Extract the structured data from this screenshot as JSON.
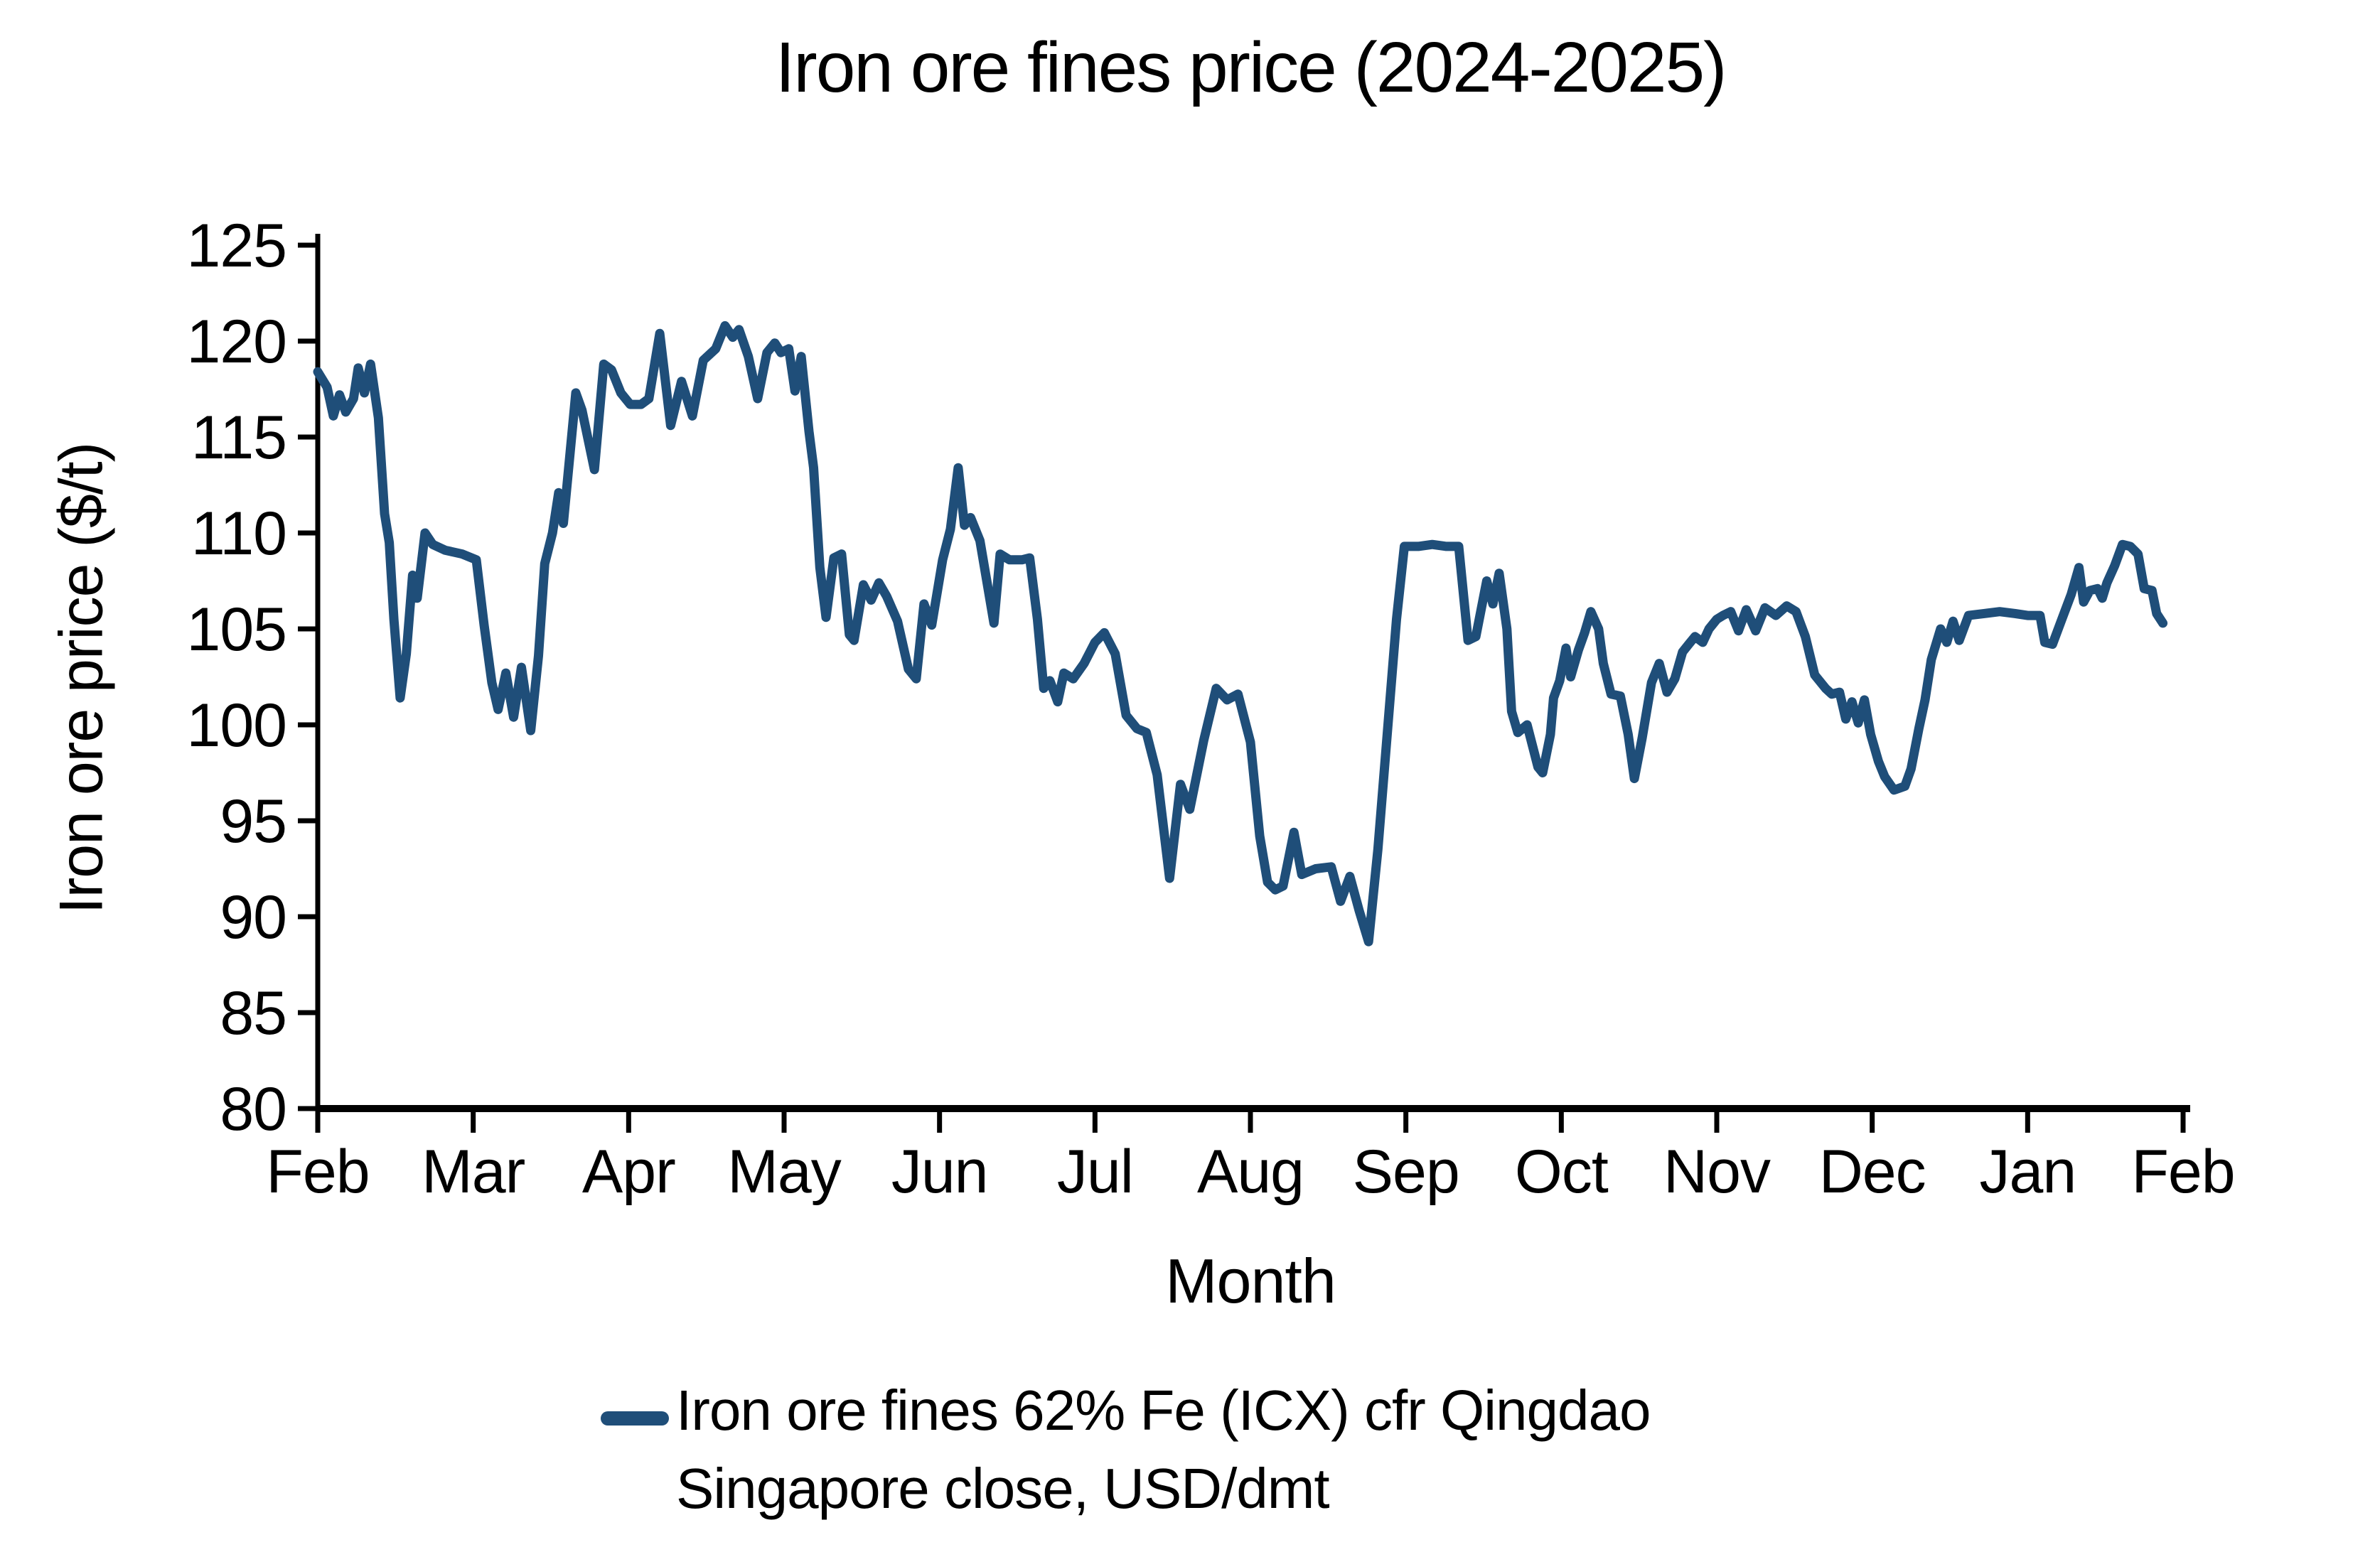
{
  "chart_data": {
    "type": "line",
    "title": "Iron ore fines price (2024-2025)",
    "xlabel": "Month",
    "ylabel": "Iron ore price ($/t)",
    "ylim": [
      80,
      125
    ],
    "y_ticks": [
      125,
      120,
      115,
      110,
      105,
      100,
      95,
      90,
      85,
      80
    ],
    "x_ticks": [
      "Feb",
      "Mar",
      "Apr",
      "May",
      "Jun",
      "Jul",
      "Aug",
      "Sep",
      "Oct",
      "Nov",
      "Dec",
      "Jan",
      "Feb"
    ],
    "grid": false,
    "legend_position": "bottom",
    "axis_color": "#000000",
    "series": [
      {
        "name_line1": "Iron ore fines 62% Fe (ICX) cfr Qingdao",
        "name_line2": "Singapore close, USD/dmt",
        "color": "#1f4e79",
        "points": [
          [
            0.0,
            118.4
          ],
          [
            0.06,
            117.6
          ],
          [
            0.1,
            116.1
          ],
          [
            0.14,
            117.2
          ],
          [
            0.18,
            116.3
          ],
          [
            0.23,
            117.0
          ],
          [
            0.26,
            118.6
          ],
          [
            0.3,
            117.3
          ],
          [
            0.34,
            118.8
          ],
          [
            0.39,
            116.0
          ],
          [
            0.43,
            111.0
          ],
          [
            0.46,
            109.5
          ],
          [
            0.49,
            105.5
          ],
          [
            0.53,
            101.4
          ],
          [
            0.57,
            103.7
          ],
          [
            0.61,
            107.8
          ],
          [
            0.64,
            106.6
          ],
          [
            0.69,
            110.0
          ],
          [
            0.74,
            109.4
          ],
          [
            0.82,
            109.1
          ],
          [
            0.93,
            108.9
          ],
          [
            1.02,
            108.6
          ],
          [
            1.07,
            105.2
          ],
          [
            1.12,
            102.2
          ],
          [
            1.16,
            100.8
          ],
          [
            1.21,
            102.7
          ],
          [
            1.26,
            100.4
          ],
          [
            1.31,
            103.0
          ],
          [
            1.37,
            99.7
          ],
          [
            1.42,
            103.6
          ],
          [
            1.46,
            108.4
          ],
          [
            1.51,
            110.0
          ],
          [
            1.55,
            112.1
          ],
          [
            1.58,
            110.5
          ],
          [
            1.66,
            117.3
          ],
          [
            1.7,
            116.4
          ],
          [
            1.78,
            113.3
          ],
          [
            1.84,
            118.8
          ],
          [
            1.89,
            118.5
          ],
          [
            1.95,
            117.3
          ],
          [
            2.01,
            116.7
          ],
          [
            2.08,
            116.7
          ],
          [
            2.13,
            117.0
          ],
          [
            2.2,
            120.4
          ],
          [
            2.27,
            115.6
          ],
          [
            2.34,
            117.9
          ],
          [
            2.41,
            116.1
          ],
          [
            2.48,
            119.0
          ],
          [
            2.56,
            119.6
          ],
          [
            2.62,
            120.8
          ],
          [
            2.67,
            120.2
          ],
          [
            2.71,
            120.6
          ],
          [
            2.77,
            119.2
          ],
          [
            2.83,
            117.0
          ],
          [
            2.89,
            119.4
          ],
          [
            2.94,
            119.9
          ],
          [
            2.98,
            119.4
          ],
          [
            3.03,
            119.6
          ],
          [
            3.07,
            117.4
          ],
          [
            3.11,
            119.2
          ],
          [
            3.16,
            115.3
          ],
          [
            3.19,
            113.4
          ],
          [
            3.23,
            108.2
          ],
          [
            3.27,
            105.6
          ],
          [
            3.32,
            108.7
          ],
          [
            3.37,
            108.9
          ],
          [
            3.42,
            104.7
          ],
          [
            3.45,
            104.4
          ],
          [
            3.51,
            107.3
          ],
          [
            3.56,
            106.5
          ],
          [
            3.61,
            107.4
          ],
          [
            3.66,
            106.7
          ],
          [
            3.73,
            105.4
          ],
          [
            3.8,
            102.9
          ],
          [
            3.85,
            102.4
          ],
          [
            3.9,
            106.3
          ],
          [
            3.95,
            105.2
          ],
          [
            4.02,
            108.6
          ],
          [
            4.07,
            110.2
          ],
          [
            4.12,
            113.4
          ],
          [
            4.16,
            110.4
          ],
          [
            4.2,
            110.8
          ],
          [
            4.26,
            109.6
          ],
          [
            4.31,
            107.2
          ],
          [
            4.35,
            105.3
          ],
          [
            4.39,
            108.9
          ],
          [
            4.45,
            108.6
          ],
          [
            4.53,
            108.6
          ],
          [
            4.58,
            108.7
          ],
          [
            4.63,
            105.5
          ],
          [
            4.67,
            101.9
          ],
          [
            4.71,
            102.3
          ],
          [
            4.76,
            101.2
          ],
          [
            4.8,
            102.7
          ],
          [
            4.86,
            102.4
          ],
          [
            4.93,
            103.2
          ],
          [
            5.0,
            104.3
          ],
          [
            5.06,
            104.8
          ],
          [
            5.13,
            103.7
          ],
          [
            5.2,
            100.5
          ],
          [
            5.27,
            99.8
          ],
          [
            5.33,
            99.6
          ],
          [
            5.4,
            97.4
          ],
          [
            5.48,
            92.0
          ],
          [
            5.55,
            96.9
          ],
          [
            5.61,
            95.6
          ],
          [
            5.7,
            99.2
          ],
          [
            5.78,
            101.9
          ],
          [
            5.85,
            101.3
          ],
          [
            5.92,
            101.6
          ],
          [
            6.0,
            99.1
          ],
          [
            6.06,
            94.2
          ],
          [
            6.11,
            91.8
          ],
          [
            6.16,
            91.4
          ],
          [
            6.21,
            91.6
          ],
          [
            6.28,
            94.4
          ],
          [
            6.33,
            92.2
          ],
          [
            6.42,
            92.5
          ],
          [
            6.52,
            92.6
          ],
          [
            6.58,
            90.8
          ],
          [
            6.64,
            92.1
          ],
          [
            6.7,
            90.3
          ],
          [
            6.76,
            88.7
          ],
          [
            6.82,
            93.5
          ],
          [
            6.88,
            99.5
          ],
          [
            6.94,
            105.5
          ],
          [
            6.99,
            109.3
          ],
          [
            7.08,
            109.3
          ],
          [
            7.17,
            109.4
          ],
          [
            7.26,
            109.3
          ],
          [
            7.34,
            109.3
          ],
          [
            7.4,
            104.4
          ],
          [
            7.45,
            104.6
          ],
          [
            7.52,
            107.5
          ],
          [
            7.56,
            106.3
          ],
          [
            7.6,
            107.9
          ],
          [
            7.65,
            105.0
          ],
          [
            7.68,
            100.7
          ],
          [
            7.72,
            99.6
          ],
          [
            7.78,
            100.0
          ],
          [
            7.85,
            97.8
          ],
          [
            7.88,
            97.5
          ],
          [
            7.93,
            99.5
          ],
          [
            7.95,
            101.4
          ],
          [
            7.99,
            102.3
          ],
          [
            8.03,
            104.0
          ],
          [
            8.06,
            102.5
          ],
          [
            8.11,
            103.9
          ],
          [
            8.15,
            104.8
          ],
          [
            8.19,
            105.9
          ],
          [
            8.24,
            105.0
          ],
          [
            8.27,
            103.2
          ],
          [
            8.32,
            101.6
          ],
          [
            8.38,
            101.5
          ],
          [
            8.43,
            99.5
          ],
          [
            8.47,
            97.2
          ],
          [
            8.52,
            99.3
          ],
          [
            8.58,
            102.2
          ],
          [
            8.63,
            103.2
          ],
          [
            8.68,
            101.7
          ],
          [
            8.73,
            102.4
          ],
          [
            8.78,
            103.8
          ],
          [
            8.82,
            104.2
          ],
          [
            8.86,
            104.6
          ],
          [
            8.91,
            104.3
          ],
          [
            8.95,
            105.0
          ],
          [
            9.0,
            105.5
          ],
          [
            9.04,
            105.7
          ],
          [
            9.09,
            105.9
          ],
          [
            9.14,
            104.9
          ],
          [
            9.19,
            106.0
          ],
          [
            9.25,
            104.9
          ],
          [
            9.31,
            106.1
          ],
          [
            9.38,
            105.7
          ],
          [
            9.45,
            106.2
          ],
          [
            9.51,
            105.9
          ],
          [
            9.57,
            104.6
          ],
          [
            9.63,
            102.6
          ],
          [
            9.7,
            101.9
          ],
          [
            9.74,
            101.6
          ],
          [
            9.79,
            101.7
          ],
          [
            9.83,
            100.3
          ],
          [
            9.87,
            101.2
          ],
          [
            9.91,
            100.1
          ],
          [
            9.95,
            101.3
          ],
          [
            9.99,
            99.5
          ],
          [
            10.04,
            98.1
          ],
          [
            10.08,
            97.3
          ],
          [
            10.14,
            96.6
          ],
          [
            10.21,
            96.8
          ],
          [
            10.25,
            97.7
          ],
          [
            10.3,
            99.8
          ],
          [
            10.34,
            101.3
          ],
          [
            10.38,
            103.4
          ],
          [
            10.44,
            105.0
          ],
          [
            10.48,
            104.3
          ],
          [
            10.52,
            105.4
          ],
          [
            10.56,
            104.4
          ],
          [
            10.62,
            105.7
          ],
          [
            10.72,
            105.8
          ],
          [
            10.82,
            105.9
          ],
          [
            10.92,
            105.8
          ],
          [
            11.0,
            105.7
          ],
          [
            11.08,
            105.7
          ],
          [
            11.11,
            104.3
          ],
          [
            11.16,
            104.2
          ],
          [
            11.22,
            105.5
          ],
          [
            11.28,
            106.8
          ],
          [
            11.33,
            108.2
          ],
          [
            11.36,
            106.4
          ],
          [
            11.4,
            107.0
          ],
          [
            11.45,
            107.1
          ],
          [
            11.48,
            106.6
          ],
          [
            11.51,
            107.4
          ],
          [
            11.56,
            108.3
          ],
          [
            11.61,
            109.4
          ],
          [
            11.66,
            109.3
          ],
          [
            11.71,
            108.9
          ],
          [
            11.75,
            107.1
          ],
          [
            11.8,
            107.0
          ],
          [
            11.83,
            105.8
          ],
          [
            11.87,
            105.3
          ]
        ]
      }
    ],
    "layout": {
      "plot_left": 447,
      "plot_right": 3071,
      "plot_top": 345,
      "plot_bottom": 1560,
      "x_months": 12
    }
  }
}
